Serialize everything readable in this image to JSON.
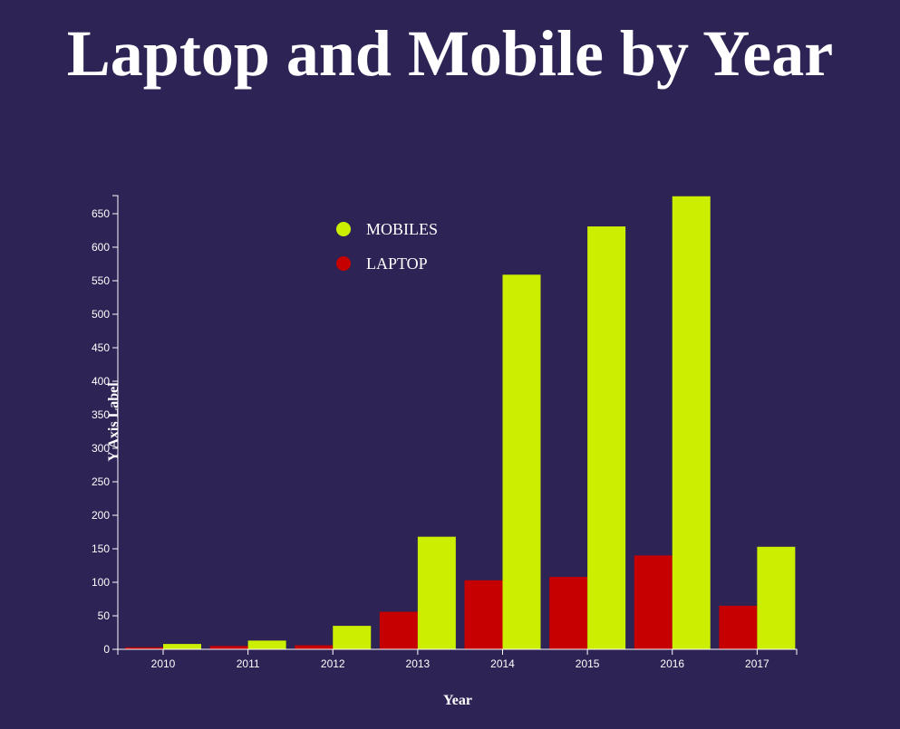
{
  "chart_data": {
    "type": "bar",
    "title": "Laptop and Mobile by Year",
    "xlabel": "Year",
    "ylabel": "Y Axis Label",
    "categories": [
      "2010",
      "2011",
      "2012",
      "2013",
      "2014",
      "2015",
      "2016",
      "2017"
    ],
    "series": [
      {
        "name": "LAPTOP",
        "color": "#c60000",
        "values": [
          3,
          5,
          6,
          56,
          103,
          108,
          140,
          65
        ]
      },
      {
        "name": "MOBILES",
        "color": "#ccee00",
        "values": [
          8,
          13,
          35,
          168,
          559,
          631,
          676,
          153
        ]
      }
    ],
    "ylim": [
      0,
      677
    ],
    "yticks": [
      0,
      50,
      100,
      150,
      200,
      250,
      300,
      350,
      400,
      450,
      500,
      550,
      600,
      650
    ],
    "legend": {
      "placement": "top-left",
      "entries": [
        {
          "label": "MOBILES",
          "color": "#ccee00"
        },
        {
          "label": "LAPTOP",
          "color": "#c60000"
        }
      ]
    },
    "grid": false
  }
}
